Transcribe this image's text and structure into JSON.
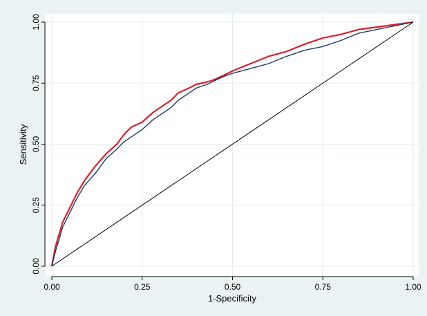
{
  "chart_data": {
    "type": "line",
    "title": "",
    "xlabel": "1-Specificity",
    "ylabel": "Sensitivity",
    "xlim": [
      0,
      1
    ],
    "ylim": [
      0,
      1
    ],
    "xticks": [
      "0.00",
      "0.25",
      "0.50",
      "0.75",
      "1.00"
    ],
    "yticks": [
      "0.00",
      "0.25",
      "0.50",
      "0.75",
      "1.00"
    ],
    "grid": true,
    "legend": "none",
    "colors": {
      "background": "#eaf2f3",
      "plot_area": "#ffffff",
      "grid": "#e3ebee",
      "red_series": "#d8202a",
      "navy_series": "#1f3b6b",
      "reference": "#000000"
    },
    "series": [
      {
        "color": "#d8202a",
        "x": [
          0,
          0.01,
          0.02,
          0.03,
          0.05,
          0.07,
          0.09,
          0.12,
          0.15,
          0.18,
          0.2,
          0.22,
          0.25,
          0.28,
          0.3,
          0.33,
          0.35,
          0.38,
          0.4,
          0.43,
          0.45,
          0.48,
          0.5,
          0.55,
          0.6,
          0.65,
          0.7,
          0.75,
          0.8,
          0.85,
          0.9,
          0.95,
          1.0
        ],
        "y": [
          0,
          0.08,
          0.13,
          0.18,
          0.24,
          0.3,
          0.35,
          0.41,
          0.46,
          0.5,
          0.54,
          0.57,
          0.59,
          0.63,
          0.65,
          0.68,
          0.71,
          0.73,
          0.745,
          0.755,
          0.765,
          0.785,
          0.8,
          0.83,
          0.86,
          0.88,
          0.91,
          0.935,
          0.95,
          0.97,
          0.98,
          0.99,
          1.0
        ]
      },
      {
        "color": "#1f3b6b",
        "x": [
          0,
          0.01,
          0.02,
          0.03,
          0.05,
          0.07,
          0.09,
          0.12,
          0.15,
          0.18,
          0.2,
          0.22,
          0.25,
          0.28,
          0.3,
          0.33,
          0.35,
          0.38,
          0.4,
          0.43,
          0.45,
          0.48,
          0.5,
          0.55,
          0.6,
          0.65,
          0.7,
          0.75,
          0.8,
          0.85,
          0.9,
          0.95,
          1.0
        ],
        "y": [
          0,
          0.06,
          0.11,
          0.16,
          0.22,
          0.28,
          0.33,
          0.38,
          0.44,
          0.48,
          0.51,
          0.53,
          0.56,
          0.6,
          0.62,
          0.65,
          0.68,
          0.71,
          0.73,
          0.745,
          0.76,
          0.78,
          0.79,
          0.81,
          0.83,
          0.86,
          0.885,
          0.9,
          0.925,
          0.955,
          0.97,
          0.985,
          1.0
        ]
      },
      {
        "color": "#000000",
        "x": [
          0,
          1
        ],
        "y": [
          0,
          1
        ]
      }
    ]
  }
}
